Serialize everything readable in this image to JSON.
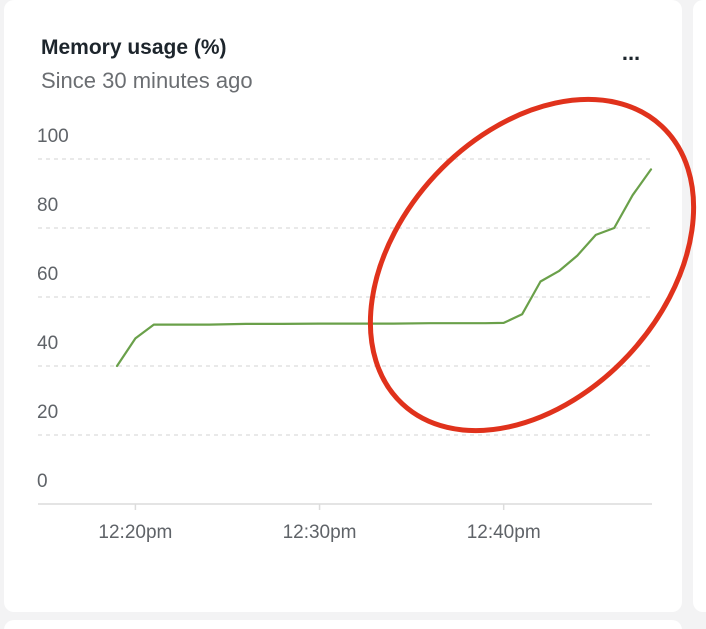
{
  "widget": {
    "title": "Memory usage (%)",
    "subtitle": "Since 30 minutes ago",
    "menu_label": "..."
  },
  "colors": {
    "series_line": "#6aa04a",
    "gridline": "#dcdcdc",
    "axis_text": "#5f6368",
    "annotation": "#e0321c"
  },
  "chart_data": {
    "type": "line",
    "title": "Memory usage (%)",
    "subtitle": "Since 30 minutes ago",
    "xlabel": "",
    "ylabel": "",
    "ylim": [
      0,
      100
    ],
    "xlim": [
      "12:19pm",
      "12:48pm"
    ],
    "y_ticks": [
      0,
      20,
      40,
      60,
      80,
      100
    ],
    "x_ticks": [
      "12:20pm",
      "12:30pm",
      "12:40pm"
    ],
    "grid": true,
    "legend": "none",
    "series": [
      {
        "x": [
          "12:19pm",
          "12:20pm",
          "12:21pm",
          "12:22pm",
          "12:24pm",
          "12:26pm",
          "12:28pm",
          "12:30pm",
          "12:32pm",
          "12:34pm",
          "12:36pm",
          "12:38pm",
          "12:39pm",
          "12:40pm",
          "12:41pm",
          "12:42pm",
          "12:43pm",
          "12:44pm",
          "12:45pm",
          "12:46pm",
          "12:47pm",
          "12:48pm"
        ],
        "values": [
          40,
          48,
          52,
          52,
          52,
          52.2,
          52.2,
          52.3,
          52.3,
          52.3,
          52.4,
          52.4,
          52.4,
          52.5,
          55,
          64.5,
          67.5,
          72,
          78,
          80,
          89.5,
          97
        ]
      }
    ],
    "annotations": [
      {
        "type": "ellipse",
        "description": "red hand-drawn circle highlighting the rise after 12:40pm"
      }
    ]
  }
}
